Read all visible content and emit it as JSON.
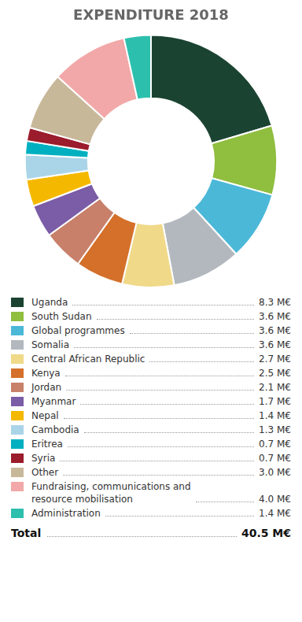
{
  "chart_data": {
    "type": "doughnut",
    "title": "EXPENDITURE 2018",
    "categories": [
      "Uganda",
      "South Sudan",
      "Global programmes",
      "Somalia",
      "Central African Republic",
      "Kenya",
      "Jordan",
      "Myanmar",
      "Nepal",
      "Cambodia",
      "Eritrea",
      "Syria",
      "Other",
      "Fundraising, communications and\nresource mobilisation",
      "Administration"
    ],
    "values": [
      8.3,
      3.6,
      3.6,
      3.6,
      2.7,
      2.5,
      2.1,
      1.7,
      1.4,
      1.3,
      0.7,
      0.7,
      3.0,
      4.0,
      1.4
    ],
    "value_labels": [
      "8.3 M€",
      "3.6 M€",
      "3.6 M€",
      "3.6 M€",
      "2.7 M€",
      "2.5 M€",
      "2.1 M€",
      "1.7 M€",
      "1.4 M€",
      "1.3 M€",
      "0.7 M€",
      "0.7 M€",
      "3.0 M€",
      "4.0 M€",
      "1.4 M€"
    ],
    "colors": [
      "#1b4332",
      "#90be3f",
      "#4cb8d8",
      "#b2b8be",
      "#f0d988",
      "#d4702a",
      "#c8806a",
      "#7b5ca6",
      "#f5b800",
      "#aad4e8",
      "#00b0c0",
      "#9b1c2c",
      "#c8b89a",
      "#f2a8a8",
      "#2dbfad"
    ],
    "total_label": "Total",
    "total_value": 40.5,
    "total_value_label": "40.5 M€"
  }
}
